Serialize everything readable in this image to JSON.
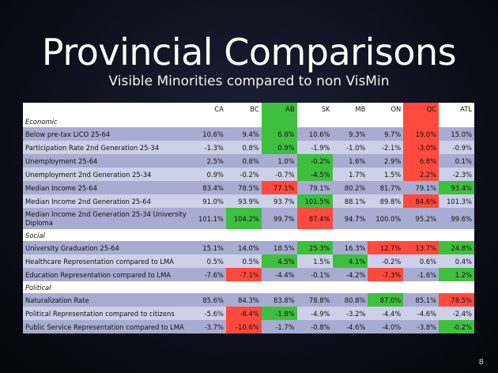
{
  "title": "Provincial Comparisons",
  "subtitle": "Visible Minorities compared to non VisMin",
  "page_number": "8",
  "colors": {
    "green": "#3fbf3f",
    "red": "#ff4a3d",
    "row_light": "#ccd0e8",
    "row_dark": "#a7acd0"
  },
  "columns": [
    "CA",
    "BC",
    "AB",
    "SK",
    "MB",
    "ON",
    "QC",
    "ATL"
  ],
  "sections": {
    "economic": "Economic",
    "social": "Social",
    "political": "Political"
  },
  "rows": [
    {
      "label": "Below pre-tax LICO 25-64",
      "values": [
        "10.6%",
        "9.4%",
        "6.8%",
        "10.6%",
        "9.3%",
        "9.7%",
        "19.0%",
        "15.0%"
      ]
    },
    {
      "label": "Participation Rate 2nd Generation 25-34",
      "values": [
        "-1.3%",
        "0.8%",
        "0.9%",
        "-1.9%",
        "-1.0%",
        "-2.1%",
        "-3.0%",
        "-0.9%"
      ]
    },
    {
      "label": "Unemployment 25-64",
      "values": [
        "2.5%",
        "0.8%",
        "1.0%",
        "-0.2%",
        "1.6%",
        "2.9%",
        "6.8%",
        "0.1%"
      ]
    },
    {
      "label": "Unemployment 2nd Generation 25-34",
      "values": [
        "0.9%",
        "-0.2%",
        "-0.7%",
        "-4.5%",
        "1.7%",
        "1.5%",
        "2.2%",
        "-2.3%"
      ]
    },
    {
      "label": "Median Income 25-64",
      "values": [
        "83.4%",
        "78.5%",
        "77.1%",
        "79.1%",
        "80.2%",
        "81.7%",
        "79.1%",
        "93.4%"
      ]
    },
    {
      "label": "Median Income 2nd Generation 25-64",
      "values": [
        "91.0%",
        "93.9%",
        "93.7%",
        "101.5%",
        "88.1%",
        "89.8%",
        "84.6%",
        "101.3%"
      ]
    },
    {
      "label": "Median Income 2nd Generation 25-34 University Diploma",
      "values": [
        "101.1%",
        "104.2%",
        "99.7%",
        "87.4%",
        "94.7%",
        "100.0%",
        "95.2%",
        "99.6%"
      ]
    },
    {
      "label": "University Graduation 25-64",
      "values": [
        "15.1%",
        "14.0%",
        "18.5%",
        "25.3%",
        "16.3%",
        "12.7%",
        "13.7%",
        "24.8%"
      ]
    },
    {
      "label": "Healthcare Representation compared to LMA",
      "values": [
        "0.5%",
        "0.5%",
        "4.5%",
        "1.5%",
        "4.1%",
        "-0.2%",
        "0.6%",
        "0.4%"
      ]
    },
    {
      "label": "Education Representation compared to LMA",
      "values": [
        "-7.6%",
        "-7.1%",
        "-4.4%",
        "-0.1%",
        "-4.2%",
        "-7.3%",
        "-1.6%",
        "1.2%"
      ]
    },
    {
      "label": "Naturalization Rate",
      "values": [
        "85.6%",
        "84.3%",
        "83.8%",
        "78.8%",
        "80.8%",
        "87.0%",
        "85.1%",
        "78.5%"
      ]
    },
    {
      "label": "Political Representation compared to citizens",
      "values": [
        "-5.6%",
        "-8.4%",
        "-1.8%",
        "-4.9%",
        "-3.2%",
        "-4.4%",
        "-4.6%",
        "-2.4%"
      ]
    },
    {
      "label": "Public Service Representation compared to LMA",
      "values": [
        "-3.7%",
        "-10.6%",
        "-1.7%",
        "-0.8%",
        "-4.6%",
        "-4.0%",
        "-3.8%",
        "-0.2%"
      ]
    }
  ]
}
